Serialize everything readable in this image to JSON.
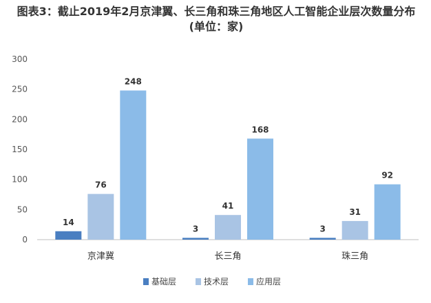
{
  "chart_data": {
    "type": "bar",
    "title": "图表3：截止2019年2月京津翼、长三角和珠三角地区人工智能企业层次数量分布(单位：家)",
    "categories": [
      "京津冀",
      "长三角",
      "珠三角"
    ],
    "series": [
      {
        "name": "基础层",
        "values": [
          14,
          3,
          3
        ],
        "color": "#4a7fc1"
      },
      {
        "name": "技术层",
        "values": [
          76,
          41,
          31
        ],
        "color": "#a9c4e4"
      },
      {
        "name": "应用层",
        "values": [
          248,
          168,
          92
        ],
        "color": "#8bbbe8"
      }
    ],
    "yticks": [
      "0",
      "50",
      "100",
      "150",
      "200",
      "250",
      "300"
    ],
    "ylim": [
      0,
      300
    ],
    "grid": false,
    "legend_position": "bottom-center",
    "xlabel": "",
    "ylabel": ""
  }
}
